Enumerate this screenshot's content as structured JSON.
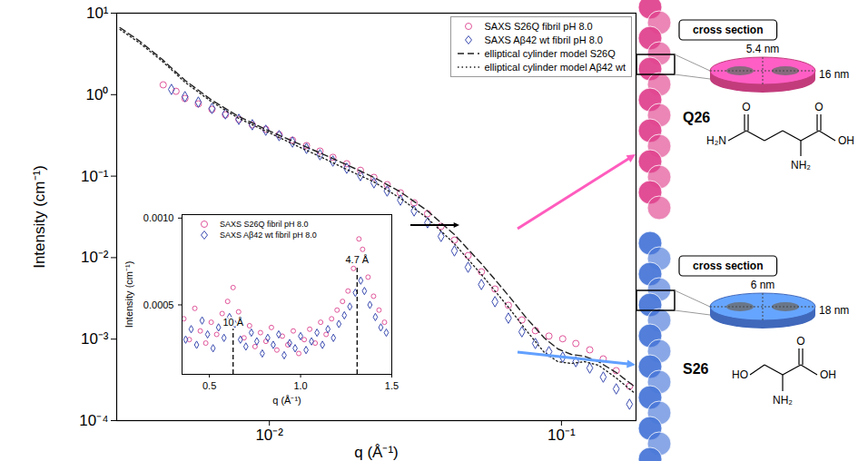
{
  "chart_data": [
    {
      "type": "scatter",
      "x_label": "q (Å⁻¹)",
      "y_label": "Intensity (cm⁻¹)",
      "log": true,
      "xlim": [
        0.003,
        0.18
      ],
      "ylim": [
        0.0001,
        10
      ],
      "xticks": [
        {
          "value": 0.01,
          "label": "10⁻²"
        },
        {
          "value": 0.1,
          "label": "10⁻¹"
        }
      ],
      "yticks": [
        {
          "value": 0.0001,
          "label": "10⁻⁴"
        },
        {
          "value": 0.001,
          "label": "10⁻³"
        },
        {
          "value": 0.01,
          "label": "10⁻²"
        },
        {
          "value": 0.1,
          "label": "10⁻¹"
        },
        {
          "value": 1,
          "label": "10⁰"
        },
        {
          "value": 10,
          "label": "10¹"
        }
      ],
      "legend": "top-right",
      "series": [
        {
          "name": "SAXS S26Q fibril pH 8.0",
          "type": "scatter",
          "color": "#e0559a",
          "marker": "circle",
          "x": [
            0.00433,
            0.00479,
            0.00514,
            0.00571,
            0.00636,
            0.00707,
            0.00786,
            0.00874,
            0.00972,
            0.0108,
            0.012,
            0.0134,
            0.0149,
            0.0165,
            0.0184,
            0.0205,
            0.0228,
            0.0253,
            0.0281,
            0.0313,
            0.0348,
            0.0387,
            0.043,
            0.0479,
            0.0532,
            0.0592,
            0.0658,
            0.0732,
            0.0814,
            0.0906,
            0.101,
            0.112,
            0.125,
            0.139,
            0.154,
            0.171
          ],
          "values": [
            1.32,
            1.1,
            0.898,
            0.77,
            0.66,
            0.566,
            0.498,
            0.427,
            0.375,
            0.322,
            0.276,
            0.237,
            0.203,
            0.17,
            0.142,
            0.118,
            0.0965,
            0.0786,
            0.0624,
            0.0471,
            0.0346,
            0.0242,
            0.0164,
            0.0106,
            0.0067,
            0.00412,
            0.0026,
            0.00172,
            0.00127,
            0.00109,
            0.00101,
            0.000884,
            0.000739,
            0.000572,
            0.00041,
            0.000265
          ]
        },
        {
          "name": "SAXS Aβ42 wt fibril pH 8.0",
          "type": "scatter",
          "color": "#3b4cb0",
          "marker": "diamond",
          "x": [
            0.00462,
            0.00514,
            0.00571,
            0.00636,
            0.00707,
            0.00786,
            0.00874,
            0.00972,
            0.0108,
            0.012,
            0.0134,
            0.0149,
            0.0165,
            0.0184,
            0.0205,
            0.0228,
            0.0253,
            0.0281,
            0.0313,
            0.0348,
            0.0387,
            0.043,
            0.0479,
            0.0532,
            0.0592,
            0.0658,
            0.0732,
            0.0814,
            0.0906,
            0.101,
            0.112,
            0.125,
            0.139,
            0.154,
            0.171
          ],
          "values": [
            1.16,
            0.945,
            0.81,
            0.677,
            0.581,
            0.498,
            0.427,
            0.366,
            0.314,
            0.262,
            0.219,
            0.183,
            0.153,
            0.125,
            0.1015,
            0.0827,
            0.0657,
            0.0508,
            0.0374,
            0.0268,
            0.0182,
            0.0121,
            0.00762,
            0.00468,
            0.00288,
            0.00181,
            0.00123,
            0.000884,
            0.000702,
            0.000602,
            0.000529,
            0.000442,
            0.000342,
            0.000245,
            0.000159
          ]
        },
        {
          "name": "elliptical cylinder model S26Q",
          "type": "line",
          "color": "#222222",
          "line_style": "dashed",
          "x": [
            0.00308,
            0.0036,
            0.0043,
            0.00514,
            0.00636,
            0.00786,
            0.00972,
            0.012,
            0.0149,
            0.0184,
            0.0228,
            0.0281,
            0.0348,
            0.043,
            0.0532,
            0.0658,
            0.0759,
            0.0874,
            0.0972,
            0.108,
            0.12,
            0.134,
            0.154,
            0.177
          ],
          "values": [
            6.64,
            4.52,
            2.7,
            1.5,
            0.853,
            0.538,
            0.375,
            0.269,
            0.193,
            0.138,
            0.0965,
            0.064,
            0.0374,
            0.0192,
            0.00844,
            0.00344,
            0.00181,
            0.00103,
            0.000758,
            0.00065,
            0.000617,
            0.000529,
            0.000389,
            0.000265
          ]
        },
        {
          "name": "elliptical cylinder model Aβ42 wt",
          "type": "line",
          "color": "#222222",
          "line_style": "dotted",
          "x": [
            0.00308,
            0.0036,
            0.0043,
            0.00514,
            0.00636,
            0.00786,
            0.00972,
            0.012,
            0.0149,
            0.0184,
            0.0228,
            0.0281,
            0.0348,
            0.043,
            0.0532,
            0.0658,
            0.0759,
            0.0874,
            0.0972,
            0.108,
            0.12,
            0.134,
            0.154,
            0.177
          ],
          "values": [
            6.3,
            4.29,
            2.57,
            1.42,
            0.81,
            0.511,
            0.357,
            0.249,
            0.174,
            0.121,
            0.0849,
            0.0535,
            0.0304,
            0.0148,
            0.00621,
            0.00247,
            0.00127,
            0.000684,
            0.000529,
            0.000503,
            0.000529,
            0.000478,
            0.000334,
            0.000221
          ]
        }
      ]
    },
    {
      "type": "scatter",
      "x_label": "q (Å⁻¹)",
      "y_label": "Intensity (cm⁻¹)",
      "xlim": [
        0.35,
        1.5
      ],
      "ylim": [
        0.0001,
        0.00102
      ],
      "xticks": [
        0.5,
        {
          "value": 1,
          "label": "1.0"
        },
        1.5
      ],
      "yticks": [
        0.0005,
        {
          "value": 0.001,
          "label": "0.0010"
        }
      ],
      "legend": "top-left",
      "series": [
        {
          "name": "SAXS S26Q fibril pH 8.0",
          "type": "scatter",
          "color": "#e0559a",
          "marker": "circle",
          "x": [
            0.36,
            0.39,
            0.42,
            0.45,
            0.48,
            0.51,
            0.54,
            0.57,
            0.6,
            0.63,
            0.66,
            0.69,
            0.72,
            0.75,
            0.78,
            0.81,
            0.84,
            0.87,
            0.9,
            0.93,
            0.96,
            0.99,
            1.02,
            1.05,
            1.08,
            1.11,
            1.14,
            1.17,
            1.2,
            1.23,
            1.26,
            1.29,
            1.32,
            1.34,
            1.37,
            1.4,
            1.43,
            1.46
          ],
          "values": [
            0.00042,
            0.0003,
            0.00048,
            0.00035,
            0.00028,
            0.0004,
            0.00033,
            0.00045,
            0.00052,
            0.0006,
            0.00046,
            0.00031,
            0.00038,
            0.00026,
            0.00034,
            0.00029,
            0.00037,
            0.00024,
            0.00032,
            0.00027,
            0.00035,
            0.00022,
            0.0003,
            0.00036,
            0.00028,
            0.0004,
            0.00033,
            0.00042,
            0.00047,
            0.00052,
            0.00058,
            0.00071,
            0.00088,
            0.00082,
            0.00066,
            0.00055,
            0.00047,
            0.0004
          ]
        },
        {
          "name": "SAXS Aβ42 wt fibril pH 8.0",
          "type": "scatter",
          "color": "#3b4cb0",
          "marker": "diamond",
          "x": [
            0.37,
            0.4,
            0.43,
            0.46,
            0.49,
            0.52,
            0.55,
            0.58,
            0.61,
            0.64,
            0.67,
            0.7,
            0.73,
            0.76,
            0.79,
            0.82,
            0.85,
            0.88,
            0.91,
            0.94,
            0.97,
            1,
            1.03,
            1.06,
            1.09,
            1.12,
            1.15,
            1.18,
            1.21,
            1.24,
            1.27,
            1.3,
            1.33,
            1.35,
            1.38,
            1.41,
            1.44,
            1.47
          ],
          "values": [
            0.0003,
            0.00036,
            0.00027,
            0.00041,
            0.00033,
            0.00025,
            0.00037,
            0.00031,
            0.00043,
            0.00039,
            0.0003,
            0.00026,
            0.00034,
            0.00029,
            0.00022,
            0.00031,
            0.00027,
            0.00033,
            0.00021,
            0.00028,
            0.00025,
            0.00032,
            0.00024,
            0.00029,
            0.00034,
            0.00027,
            0.00036,
            0.00031,
            0.00039,
            0.00044,
            0.00049,
            0.00057,
            0.00064,
            0.00058,
            0.0005,
            0.00043,
            0.00037,
            0.00034
          ]
        }
      ],
      "annotations": [
        {
          "text": "10 Å",
          "x": 0.63,
          "y": 0.00036
        },
        {
          "text": "4.7 Å",
          "x": 1.31,
          "y": 0.00072
        }
      ]
    }
  ],
  "schematic": {
    "panels": [
      {
        "residue": "Q26",
        "color": "#e0458f",
        "box_label": "cross section",
        "thickness": "5.4 nm",
        "width": "16 nm",
        "atoms": [
          "O",
          "H₂N",
          "O",
          "OH",
          "NH₂"
        ]
      },
      {
        "residue": "S26",
        "color": "#4a78d8",
        "box_label": "cross section",
        "thickness": "6 nm",
        "width": "18 nm",
        "atoms": [
          "HO",
          "O",
          "OH",
          "NH₂"
        ]
      }
    ]
  }
}
